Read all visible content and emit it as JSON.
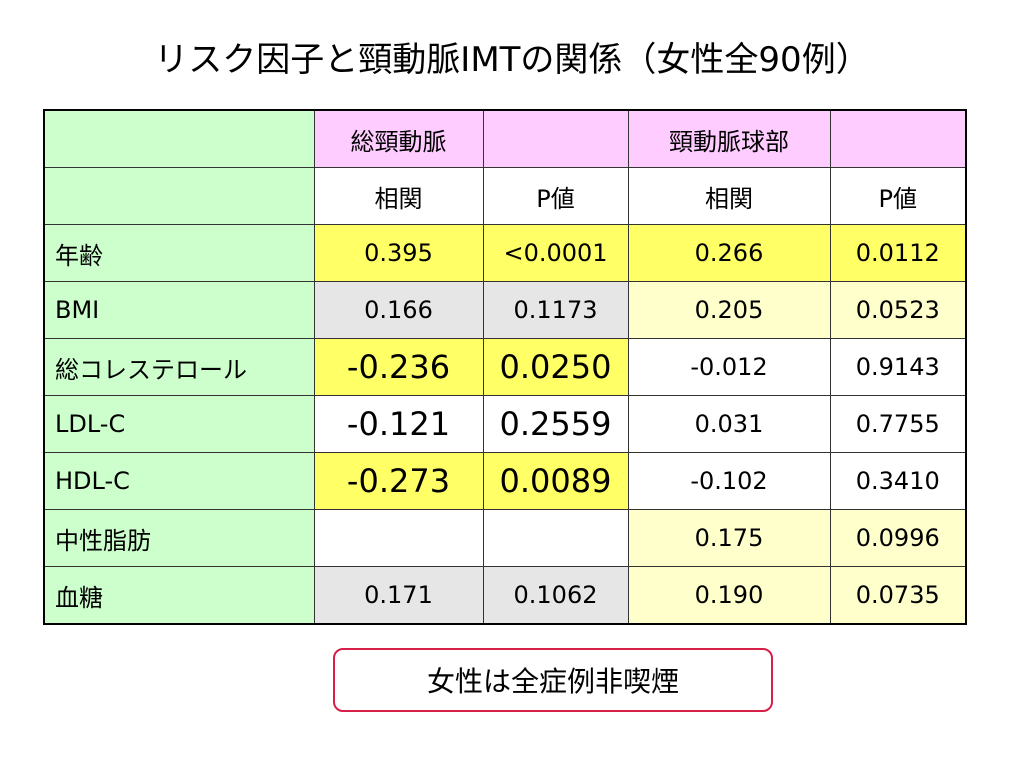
{
  "title": "リスク因子と頸動脈IMTの関係（女性全90例）",
  "table": {
    "group_headers": [
      "",
      "総頸動脈",
      "",
      "頸動脈球部",
      ""
    ],
    "sub_headers": [
      "",
      "相関",
      "P値",
      "相関",
      "P値"
    ],
    "rows": [
      {
        "label": "年齢",
        "values": [
          "0.395",
          "<0.0001",
          "0.266",
          "0.0112"
        ]
      },
      {
        "label": "BMI",
        "values": [
          "0.166",
          "0.1173",
          "0.205",
          "0.0523"
        ]
      },
      {
        "label": "総コレステロール",
        "values": [
          "-0.236",
          "0.0250",
          "-0.012",
          "0.9143"
        ]
      },
      {
        "label": "LDL-C",
        "values": [
          "-0.121",
          "0.2559",
          "0.031",
          "0.7755"
        ]
      },
      {
        "label": "HDL-C",
        "values": [
          "-0.273",
          "0.0089",
          "-0.102",
          "0.3410"
        ]
      },
      {
        "label": "中性脂肪",
        "values": [
          "",
          "",
          "0.175",
          "0.0996"
        ]
      },
      {
        "label": "血糖",
        "values": [
          "0.171",
          "0.1062",
          "0.190",
          "0.0735"
        ]
      }
    ]
  },
  "highlight_colors": {
    "header_label": "#ccffcc",
    "group_header": "#ffccff",
    "significant": "#ffff66",
    "trend": "#ffffcc",
    "not_significant": "#e6e6e6"
  },
  "note": "女性は全症例非喫煙"
}
